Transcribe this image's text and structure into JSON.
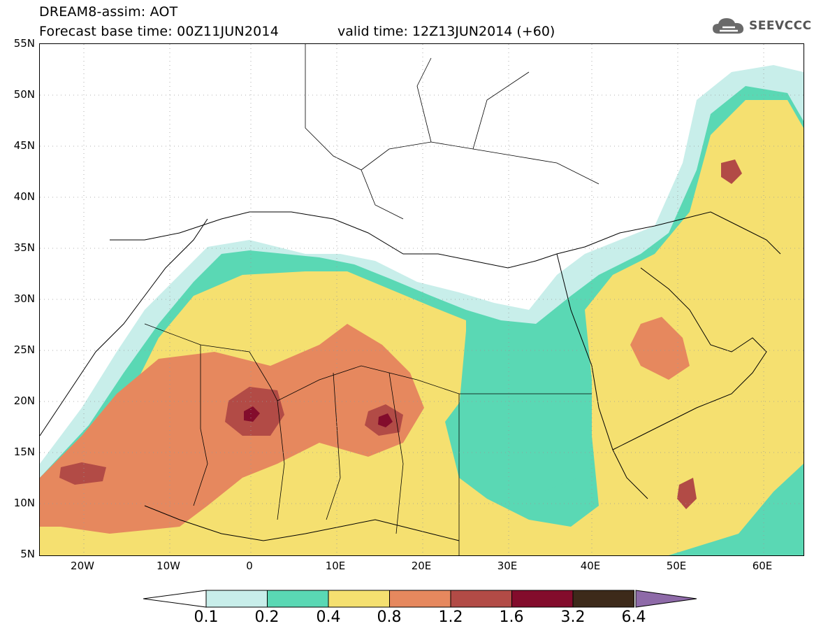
{
  "header": {
    "title_line1": "DREAM8-assim: AOT",
    "title_line2": "Forecast base time: 00Z11JUN2014",
    "valid_time": "valid time: 12Z13JUN2014 (+60)",
    "logo_text": "SEEVCCC"
  },
  "axes": {
    "lat_labels": [
      "55N",
      "50N",
      "45N",
      "40N",
      "35N",
      "30N",
      "25N",
      "20N",
      "15N",
      "10N",
      "5N"
    ],
    "lon_labels": [
      "20W",
      "10W",
      "0",
      "10E",
      "20E",
      "30E",
      "40E",
      "50E",
      "60E"
    ]
  },
  "colorbar": {
    "labels": [
      "0.1",
      "0.2",
      "0.4",
      "0.8",
      "1.2",
      "1.6",
      "3.2",
      "6.4"
    ],
    "colors": [
      "#c8eeea",
      "#5ad8b4",
      "#f5e070",
      "#e6885e",
      "#b24b46",
      "#830c2c",
      "#3d2a1a",
      "#8e6aa8"
    ]
  },
  "colors": {
    "aot_01": "#c8eeea",
    "aot_02": "#5ad8b4",
    "aot_04": "#f5e070",
    "aot_08": "#e6885e",
    "aot_12": "#b24b46",
    "aot_16": "#830c2c"
  }
}
